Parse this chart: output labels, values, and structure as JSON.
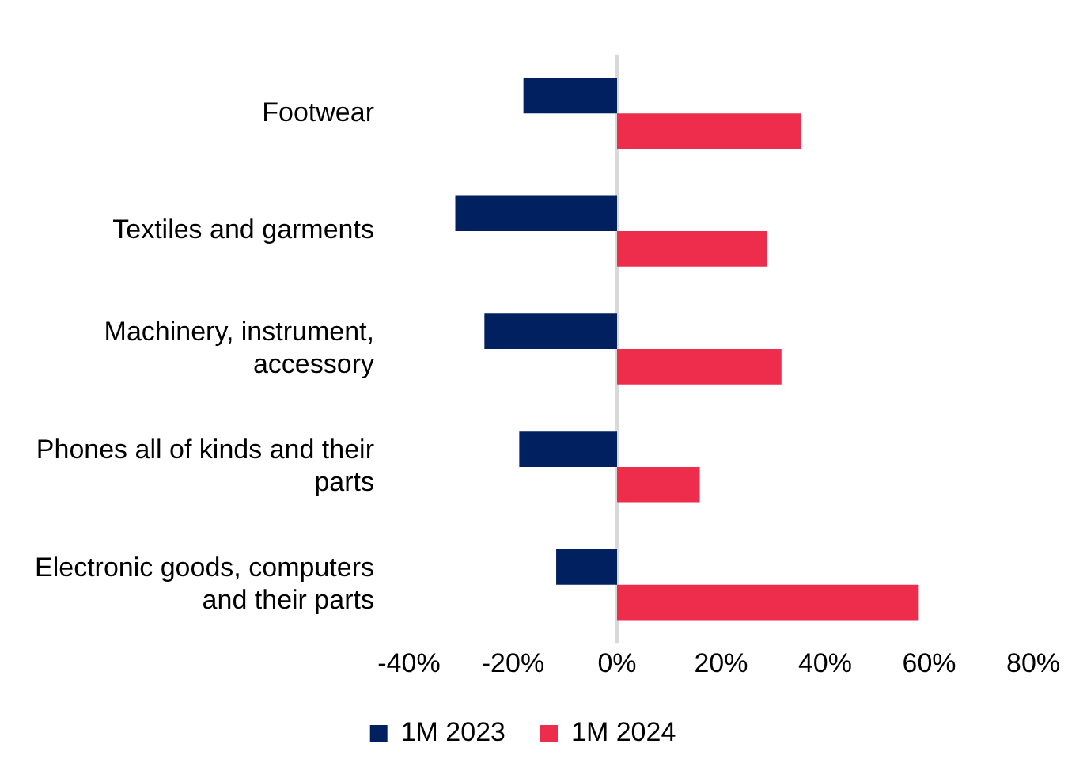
{
  "chart_data": {
    "type": "bar",
    "orientation": "horizontal",
    "categories": [
      "Footwear",
      "Textiles and garments",
      "Machinery, instrument, accessory",
      "Phones all of kinds and their parts",
      "Electronic goods, computers and their parts"
    ],
    "series": [
      {
        "name": "1M 2023",
        "color": "#002060",
        "values": [
          -18,
          -31.1,
          -25.5,
          -18.8,
          -11.7
        ]
      },
      {
        "name": "1M 2024",
        "color": "#ed2d4b",
        "values": [
          35.3,
          28.9,
          31.6,
          15.9,
          58
        ]
      }
    ],
    "xlim": [
      -40,
      80
    ],
    "xticks": [
      {
        "value": -40,
        "label": "-40%"
      },
      {
        "value": -20,
        "label": "-20%"
      },
      {
        "value": 0,
        "label": "0%"
      },
      {
        "value": 20,
        "label": "20%"
      },
      {
        "value": 40,
        "label": "40%"
      },
      {
        "value": 60,
        "label": "60%"
      },
      {
        "value": 80,
        "label": "80%"
      }
    ],
    "ref_lines": [
      {
        "axis": "x",
        "value": 0,
        "color": "#d9d9d9"
      }
    ],
    "grid": false,
    "legend": "bottom"
  }
}
